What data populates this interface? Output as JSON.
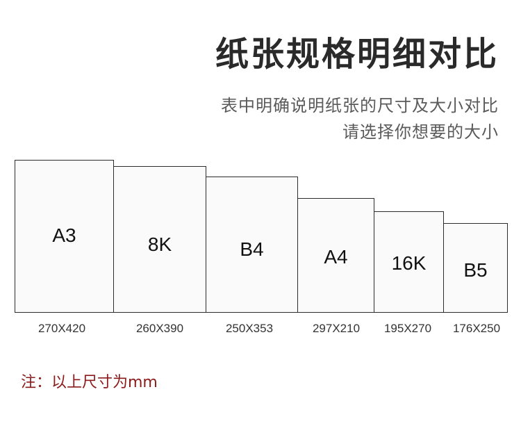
{
  "header": {
    "title": "纸张规格明细对比",
    "subtitle_line1": "表中明确说明纸张的尺寸及大小对比",
    "subtitle_line2": "请选择你想要的大小"
  },
  "papers": [
    {
      "name": "A3",
      "size": "270X420"
    },
    {
      "name": "8K",
      "size": "260X390"
    },
    {
      "name": "B4",
      "size": "250X353"
    },
    {
      "name": "A4",
      "size": "297X210"
    },
    {
      "name": "16K",
      "size": "195X270"
    },
    {
      "name": "B5",
      "size": "176X250"
    }
  ],
  "note": "注：以上尺寸为mm"
}
